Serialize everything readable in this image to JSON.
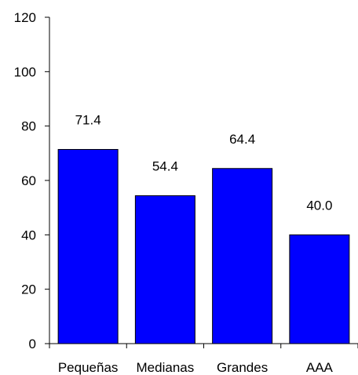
{
  "chart_data": {
    "type": "bar",
    "title": "",
    "xlabel": "",
    "ylabel": "",
    "categories": [
      "Pequeñas",
      "Medianas",
      "Grandes",
      "AAA"
    ],
    "values": [
      71.4,
      54.4,
      64.4,
      40.0
    ],
    "data_labels": [
      "71.4",
      "54.4",
      "64.4",
      "40.0"
    ],
    "ylim": [
      0,
      120
    ],
    "yticks": [
      0,
      20,
      40,
      60,
      80,
      100,
      120
    ],
    "grid": false,
    "legend": "none",
    "bar_color": "#0000FF",
    "bar_edge_color": "#000000"
  }
}
